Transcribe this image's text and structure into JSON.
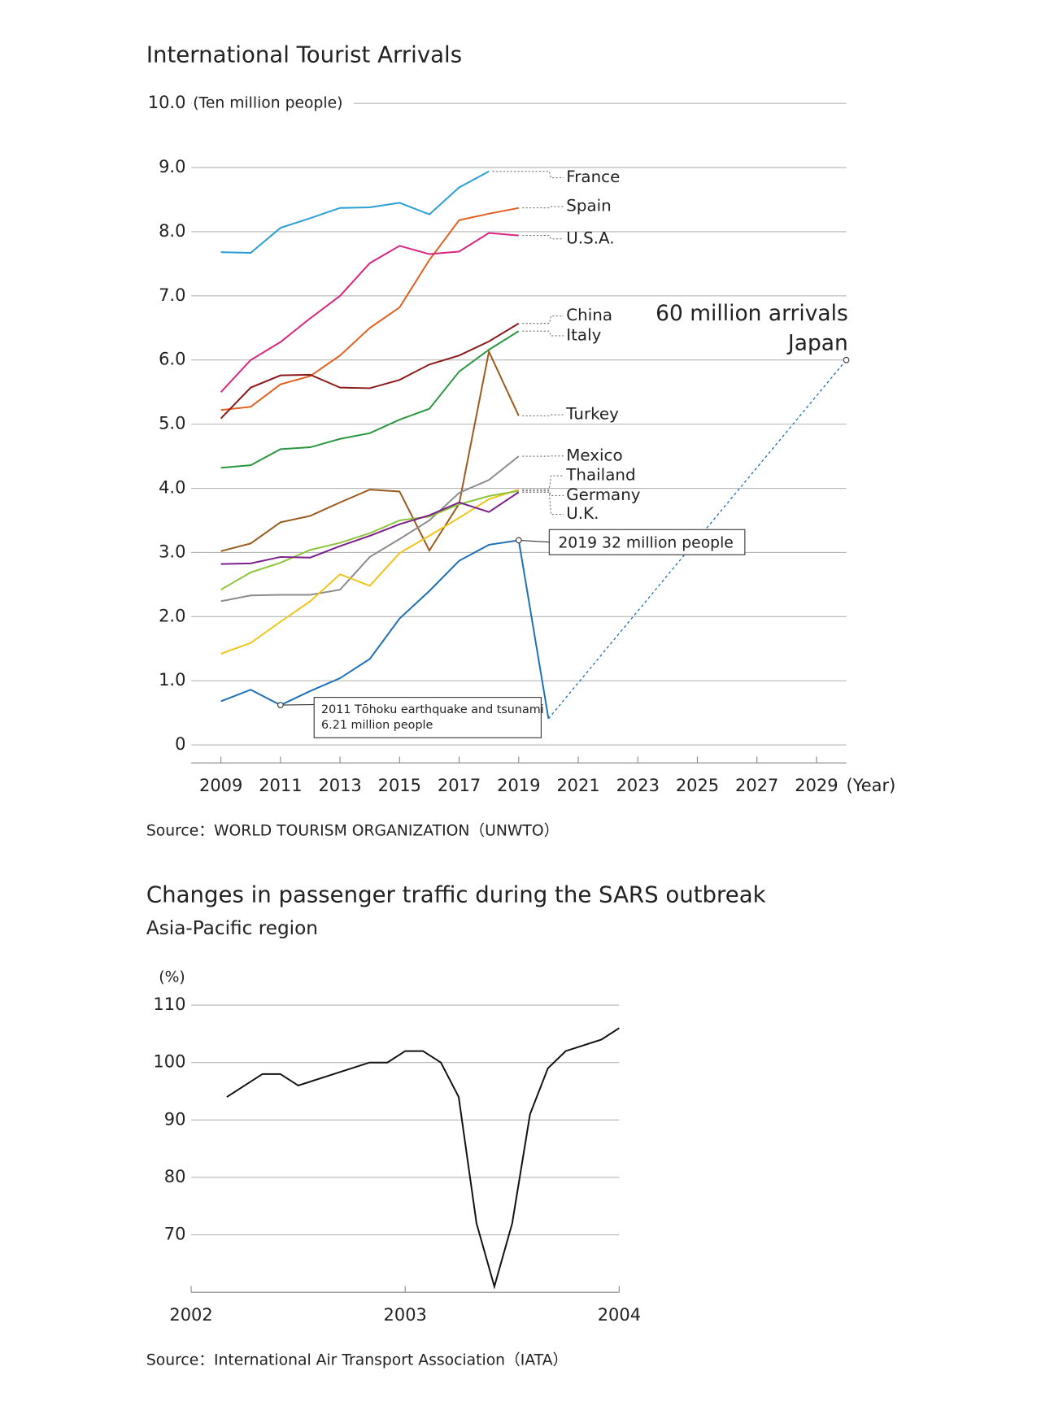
{
  "chart_data": [
    {
      "type": "line",
      "title": "International Tourist Arrivals",
      "y_unit": "(Ten million people)",
      "x_label": "(Year)",
      "source": "Source：WORLD TOURISM ORGANIZATION（UNWTO）",
      "x": [
        2009,
        2010,
        2011,
        2012,
        2013,
        2014,
        2015,
        2016,
        2017,
        2018,
        2019
      ],
      "xlim": [
        2008,
        2030
      ],
      "xticks": [
        2009,
        2011,
        2013,
        2015,
        2017,
        2019,
        2021,
        2023,
        2025,
        2027,
        2029
      ],
      "ylim": [
        0,
        10
      ],
      "yticks": [
        0,
        {
          "value": 1,
          "label": "1.0"
        },
        {
          "value": 2,
          "label": "2.0"
        },
        {
          "value": 3,
          "label": "3.0"
        },
        {
          "value": 4,
          "label": "4.0"
        },
        {
          "value": 5,
          "label": "5.0"
        },
        {
          "value": 6,
          "label": "6.0"
        },
        {
          "value": 7,
          "label": "7.0"
        },
        {
          "value": 8,
          "label": "8.0"
        },
        {
          "value": 9,
          "label": "9.0"
        },
        {
          "value": 10,
          "label": "10.0"
        }
      ],
      "grid": true,
      "series": [
        {
          "name": "France",
          "color": "#2a9fd6",
          "values": [
            7.68,
            7.67,
            8.06,
            8.21,
            8.37,
            8.38,
            8.45,
            8.27,
            8.69,
            8.94,
            null
          ]
        },
        {
          "name": "Spain",
          "color": "#e0601e",
          "values": [
            5.22,
            5.27,
            5.62,
            5.75,
            6.07,
            6.5,
            6.82,
            7.56,
            8.18,
            8.28,
            8.37
          ]
        },
        {
          "name": "U.S.A.",
          "color": "#d9267f",
          "values": [
            5.5,
            6.0,
            6.28,
            6.65,
            7.0,
            7.51,
            7.78,
            7.65,
            7.69,
            7.98,
            7.94
          ]
        },
        {
          "name": "China",
          "color": "#8b1a1a",
          "values": [
            5.09,
            5.57,
            5.76,
            5.77,
            5.57,
            5.56,
            5.69,
            5.93,
            6.07,
            6.29,
            6.57
          ]
        },
        {
          "name": "Italy",
          "color": "#2a9640",
          "values": [
            4.32,
            4.36,
            4.61,
            4.64,
            4.77,
            4.86,
            5.07,
            5.24,
            5.82,
            6.16,
            6.45
          ]
        },
        {
          "name": "Turkey",
          "color": "#9a5a1c",
          "values": [
            3.02,
            3.14,
            3.47,
            3.57,
            3.78,
            3.98,
            3.95,
            3.03,
            3.76,
            6.13,
            5.13
          ]
        },
        {
          "name": "Mexico",
          "color": "#8c8c8c",
          "values": [
            2.24,
            2.33,
            2.34,
            2.34,
            2.42,
            2.93,
            3.21,
            3.5,
            3.93,
            4.13,
            4.5
          ]
        },
        {
          "name": "Thailand",
          "color": "#f0c419",
          "values": [
            1.42,
            1.59,
            1.92,
            2.24,
            2.66,
            2.48,
            2.99,
            3.26,
            3.54,
            3.83,
            3.98
          ]
        },
        {
          "name": "Germany",
          "color": "#8cc43c",
          "values": [
            2.42,
            2.69,
            2.84,
            3.04,
            3.15,
            3.3,
            3.5,
            3.56,
            3.75,
            3.88,
            3.96
          ]
        },
        {
          "name": "U.K.",
          "color": "#7a1f8a",
          "values": [
            2.82,
            2.83,
            2.93,
            2.92,
            3.1,
            3.26,
            3.44,
            3.58,
            3.78,
            3.63,
            3.94
          ]
        },
        {
          "name": "Japan",
          "color": "#1f6fb5",
          "x": [
            2009,
            2010,
            2011,
            2012,
            2013,
            2014,
            2015,
            2016,
            2017,
            2018,
            2019,
            2020
          ],
          "values": [
            0.68,
            0.86,
            0.621,
            0.84,
            1.04,
            1.34,
            1.97,
            2.4,
            2.87,
            3.12,
            3.19,
            0.41
          ],
          "projection": {
            "x": [
              2020,
              2030
            ],
            "values": [
              0.41,
              6.0
            ],
            "label": "60 million arrivals"
          }
        }
      ],
      "annotations": [
        {
          "lines": [
            "2011 Tōhoku earthquake and tsunami",
            "6.21 million people"
          ]
        },
        {
          "lines": [
            "2019   32 million people"
          ]
        }
      ]
    },
    {
      "type": "line",
      "title": "Changes in passenger traffic during the SARS outbreak",
      "subtitle": "Asia-Pacific region",
      "y_unit": "(%)",
      "source": "Source：International Air Transport Association（IATA）",
      "x": [
        2002.1667,
        2002.3333,
        2002.4167,
        2002.5,
        2002.6667,
        2002.8333,
        2002.9167,
        2003.0,
        2003.0833,
        2003.1667,
        2003.25,
        2003.3333,
        2003.4167,
        2003.5,
        2003.5833,
        2003.6667,
        2003.75,
        2003.9167,
        2004.0
      ],
      "xlim": [
        2002,
        2004
      ],
      "xticks": [
        2002,
        2003,
        2004
      ],
      "ylim": [
        60,
        110
      ],
      "yticks": [
        70,
        80,
        90,
        100,
        110
      ],
      "grid": true,
      "series": [
        {
          "color": "#111111",
          "values": [
            94,
            98,
            98,
            96,
            98,
            100,
            100,
            102,
            102,
            100,
            94,
            72,
            61,
            72,
            91,
            99,
            102,
            104,
            106
          ]
        }
      ]
    }
  ]
}
